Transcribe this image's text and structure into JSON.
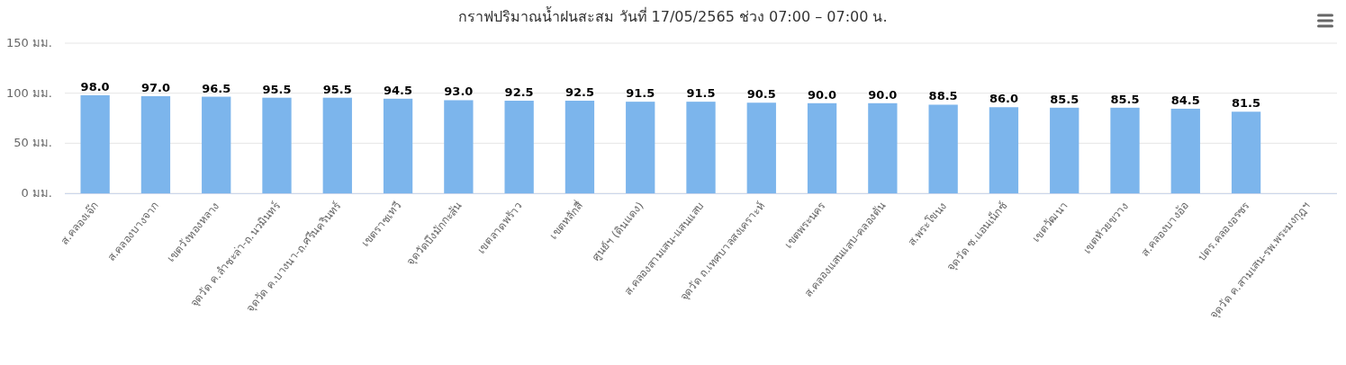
{
  "chart_data": {
    "type": "bar",
    "title": "กราฟปริมาณน้ำฝนสะสม วันที่ 17/05/2565 ช่วง 07:00 – 07:00 น.",
    "categories": [
      "ส.คลองเจ๊ก",
      "ส.คลองบางจาก",
      "เขตวังทองหลาง",
      "จุดวัด ค.ลำชะล่า-ถ.นวมินทร์",
      "จุดวัด ค.บางนา-ถ.ศรีนครินทร์",
      "เขตราชเทวี",
      "จุดวัดบึงมักกะสัน",
      "เขตลาดพร้าว",
      "เขตหลักสี่",
      "ศูนย์ฯ (ดินแดง)",
      "ส.คลองสามเสน-แสนแสบ",
      "จุดวัด ถ.เทศบาลสงเคราะห์",
      "เขตพระนคร",
      "ส.คลองแสนแสบ-คลองตัน",
      "ส.พระโขนง",
      "จุดวัด ซ.แอนเน็กซ์",
      "เขตวัฒนา",
      "เขตห้วยขวาง",
      "ส.คลองบางอ้อ",
      "ปตร.คลองอรชร",
      "จุดวัด ค.สามเสน-รพ.พระมงกุฎฯ"
    ],
    "values": [
      98.0,
      97.0,
      96.5,
      95.5,
      95.5,
      94.5,
      93.0,
      92.5,
      92.5,
      91.5,
      91.5,
      90.5,
      90.0,
      90.0,
      88.5,
      86.0,
      85.5,
      85.5,
      84.5,
      81.5,
      null
    ],
    "value_labels": [
      "98.0",
      "97.0",
      "96.5",
      "95.5",
      "95.5",
      "94.5",
      "93.0",
      "92.5",
      "92.5",
      "91.5",
      "91.5",
      "90.5",
      "90.0",
      "90.0",
      "88.5",
      "86.0",
      "85.5",
      "85.5",
      "84.5",
      "81.5",
      null
    ],
    "color": "#7cb5ec",
    "ylim": [
      0,
      150
    ],
    "yticks": [
      {
        "value": 0,
        "label": "0 มม."
      },
      {
        "value": 50,
        "label": "50 มม."
      },
      {
        "value": 100,
        "label": "100 มม."
      },
      {
        "value": 150,
        "label": "150 มม."
      }
    ],
    "grid": "y"
  }
}
